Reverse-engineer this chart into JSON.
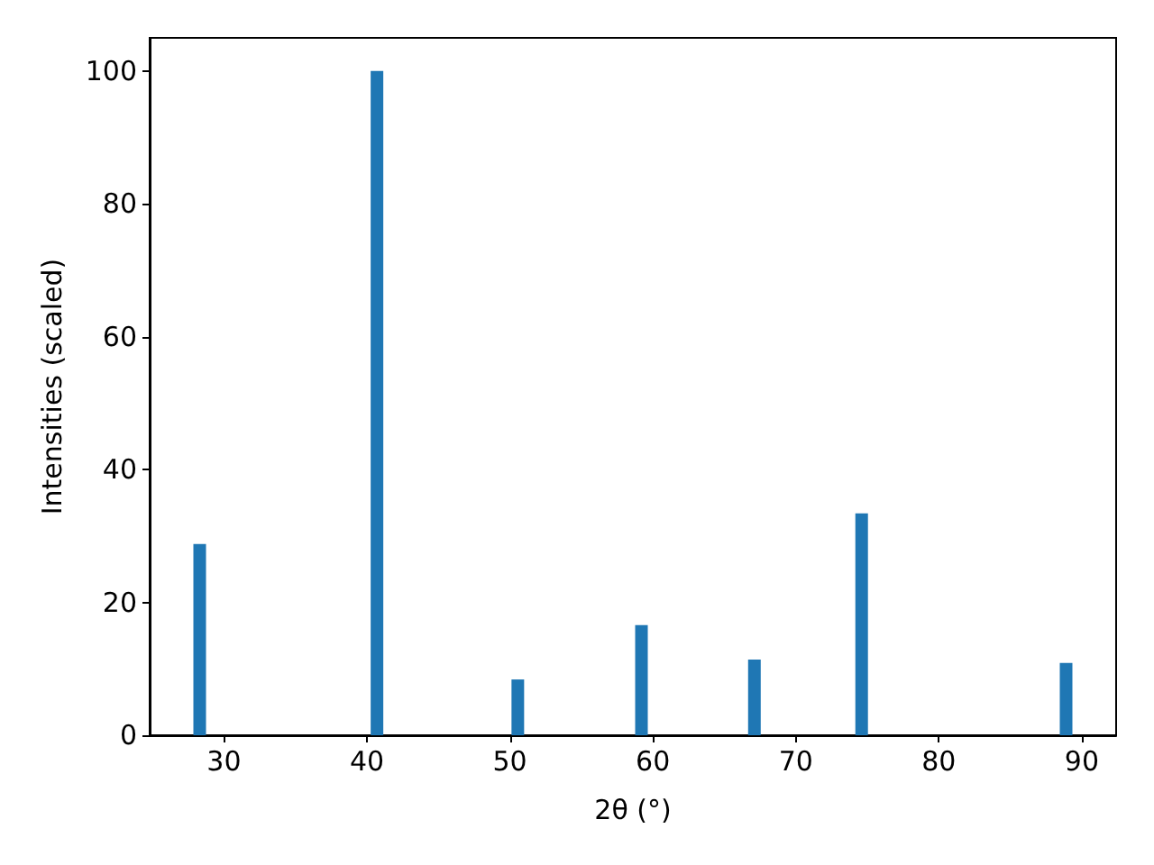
{
  "chart_data": {
    "type": "bar",
    "xlabel": "2θ (°)",
    "ylabel": "Intensities (scaled)",
    "x": [
      28.3,
      40.7,
      50.55,
      59.2,
      67.1,
      74.6,
      88.9
    ],
    "values": [
      28.8,
      100,
      8.4,
      16.6,
      11.4,
      33.4,
      10.9
    ],
    "color": "#1f77b4",
    "xlim": [
      24.8,
      92.4
    ],
    "xticks": [
      30,
      40,
      50,
      60,
      70,
      80,
      90
    ],
    "ylim": [
      0,
      105
    ],
    "yticks": [
      0,
      20,
      40,
      60,
      80,
      100
    ],
    "grid": false
  }
}
